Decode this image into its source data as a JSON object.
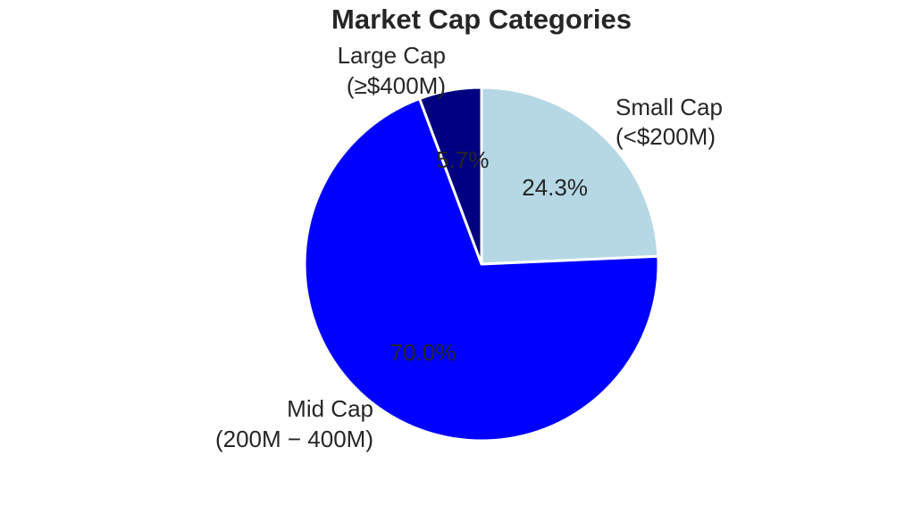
{
  "chart_data": {
    "type": "pie",
    "title": "Market Cap Categories",
    "slices": [
      {
        "name": "Small Cap (<$200M)",
        "label_lines": [
          "Small Cap",
          "(<$200M)"
        ],
        "value": 24.3,
        "pct_label": "24.3%",
        "color": "#b5d8e4"
      },
      {
        "name": "Mid Cap (200M-400M)",
        "label_lines": [
          "Mid Cap",
          "(200M − 400M)"
        ],
        "value": 70.0,
        "pct_label": "70.0%",
        "color": "#0000ff"
      },
      {
        "name": "Large Cap (≥$400M)",
        "label_lines": [
          "Large Cap",
          "(≥$400M)"
        ],
        "value": 5.7,
        "pct_label": "5.7%",
        "color": "#000080"
      }
    ],
    "start_angle": "top (90°)",
    "direction": "clockwise",
    "edge_color": "#ffffff",
    "legend": "none",
    "grid": false
  }
}
